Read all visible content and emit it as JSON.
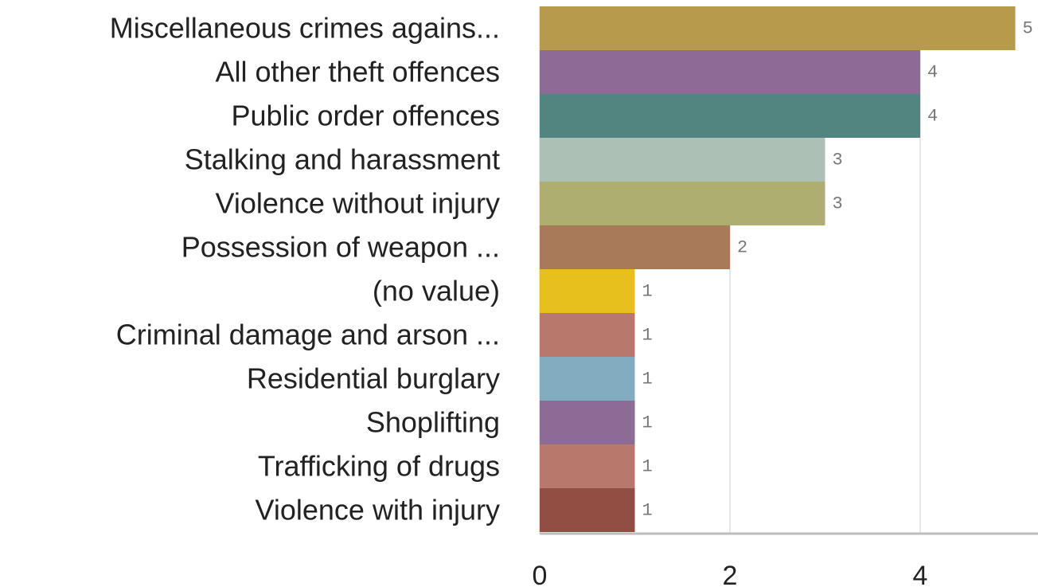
{
  "chart_data": {
    "type": "bar",
    "orientation": "horizontal",
    "categories": [
      "Miscellaneous crimes agains...",
      "All other theft offences",
      "Public order offences",
      "Stalking and harassment",
      "Violence without injury",
      "Possession of weapon ...",
      "(no value)",
      "Criminal damage and arson ...",
      "Residential burglary",
      "Shoplifting",
      "Trafficking of drugs",
      "Violence with injury"
    ],
    "values": [
      5,
      4,
      4,
      3,
      3,
      2,
      1,
      1,
      1,
      1,
      1,
      1
    ],
    "value_labels": [
      "5",
      "4",
      "4",
      "3",
      "3",
      "2",
      "1",
      "1",
      "1",
      "1",
      "1",
      "1"
    ],
    "colors": [
      "#b89a4c",
      "#8c6b96",
      "#528580",
      "#adc0b6",
      "#adae6f",
      "#a97a5a",
      "#e7c01e",
      "#b8786b",
      "#82adc0",
      "#8c6b96",
      "#b8786b",
      "#934e44"
    ],
    "xticks": [
      0,
      2,
      4
    ],
    "xtick_labels": [
      "0",
      "2",
      "4"
    ],
    "xlim": [
      0,
      5.4
    ],
    "grid": true,
    "title": "",
    "xlabel": "",
    "ylabel": ""
  }
}
